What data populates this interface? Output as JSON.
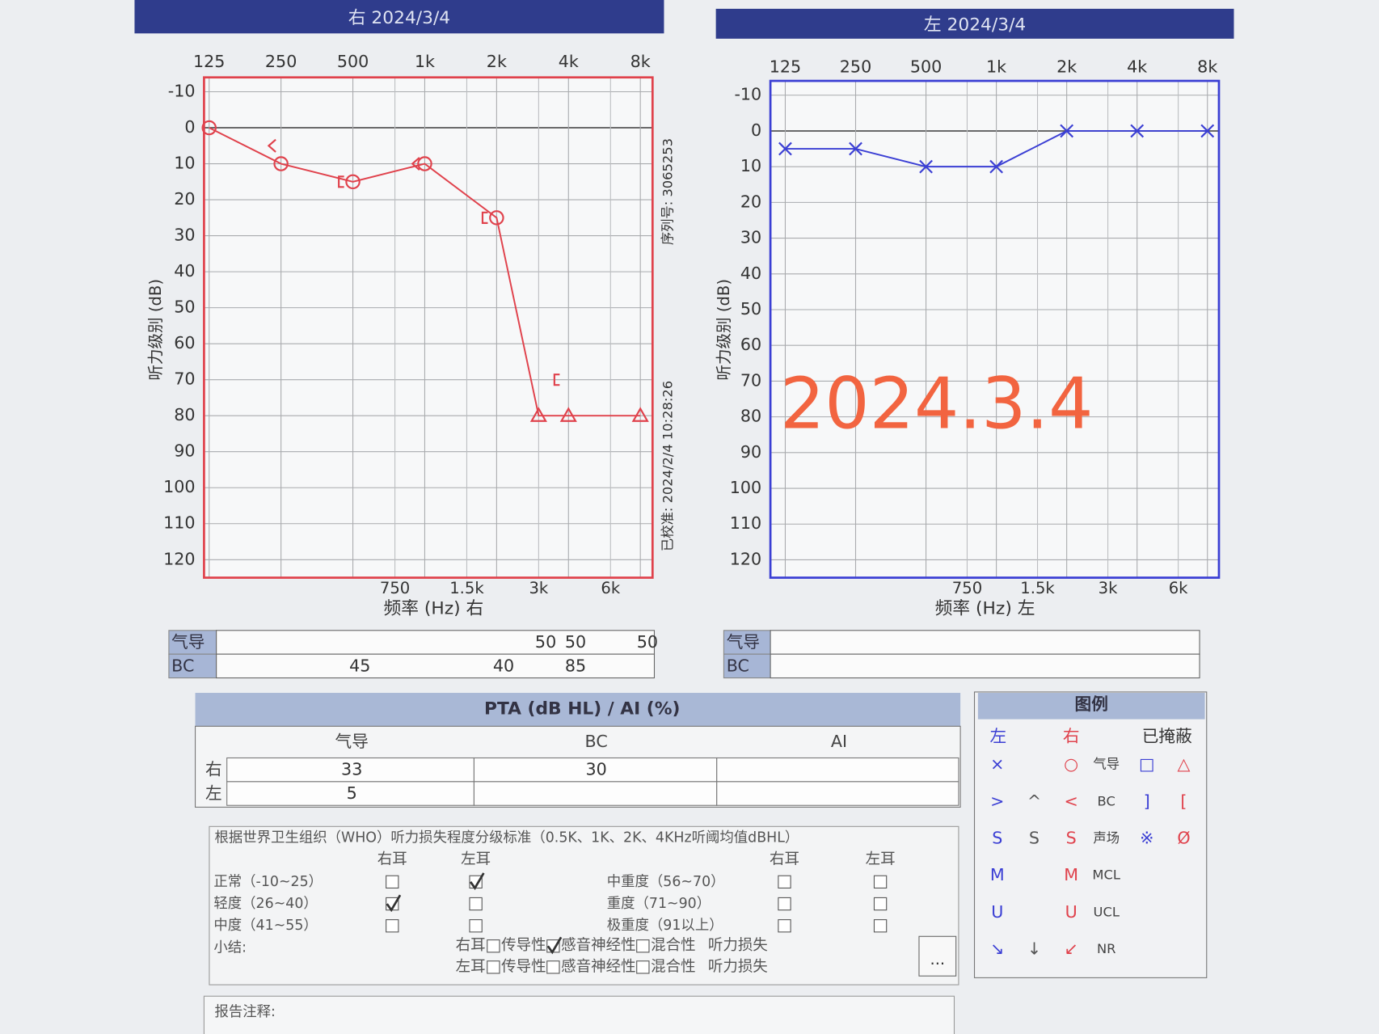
{
  "chart_data": [
    {
      "type": "line",
      "title": "右 2024/3/4",
      "x_label": "频率 (Hz) 右",
      "y_label": "听力级别 (dB)",
      "log_x": true,
      "xlim": [
        119,
        9000
      ],
      "ylim": [
        125,
        -14
      ],
      "xticks": [
        125,
        250,
        500,
        {
          "value": 1000,
          "label": "1k"
        },
        {
          "value": 2000,
          "label": "2k"
        },
        {
          "value": 4000,
          "label": "4k"
        },
        {
          "value": 8000,
          "label": "8k"
        }
      ],
      "xticks_bottom": [
        750,
        {
          "value": 1500,
          "label": "1.5k"
        },
        {
          "value": 3000,
          "label": "3k"
        },
        {
          "value": 6000,
          "label": "6k"
        }
      ],
      "yticks": [
        -10,
        0,
        10,
        20,
        30,
        40,
        50,
        60,
        70,
        80,
        90,
        100,
        110,
        120
      ],
      "grid": true,
      "frame_color": "#e0424c",
      "x": [
        125,
        250,
        500,
        1000,
        2000,
        3000,
        4000,
        8000
      ],
      "series": [
        {
          "color": "#e0424c",
          "line": true,
          "markers": [
            "circle",
            "circle",
            "circle",
            "circle",
            "circle",
            "triangle",
            "triangle",
            "triangle"
          ],
          "values": [
            0,
            10,
            15,
            10,
            25,
            80,
            80,
            80
          ]
        },
        {
          "color": "#e0424c",
          "line": false,
          "markers": [
            null,
            "<",
            "[",
            "<",
            "[",
            null,
            "[",
            null
          ],
          "values": [
            null,
            5,
            15,
            10,
            25,
            null,
            70,
            null
          ]
        }
      ],
      "side_texts": [
        "序列号: 3065253",
        "已校准: 2024/2/4 10:28:26"
      ],
      "masking": {
        "air_label": "气导",
        "bc_label": "BC",
        "air": [
          null,
          null,
          null,
          null,
          null,
          50,
          50,
          50
        ],
        "bc": [
          null,
          null,
          45,
          null,
          40,
          null,
          85,
          null
        ]
      }
    },
    {
      "type": "line",
      "title": "左 2024/3/4",
      "x_label": "频率 (Hz) 左",
      "y_label": "听力级别 (dB)",
      "log_x": true,
      "xlim": [
        108,
        8960
      ],
      "ylim": [
        125,
        -14
      ],
      "xticks": [
        125,
        250,
        500,
        {
          "value": 1000,
          "label": "1k"
        },
        {
          "value": 2000,
          "label": "2k"
        },
        {
          "value": 4000,
          "label": "4k"
        },
        {
          "value": 8000,
          "label": "8k"
        }
      ],
      "xticks_bottom": [
        750,
        {
          "value": 1500,
          "label": "1.5k"
        },
        {
          "value": 3000,
          "label": "3k"
        },
        {
          "value": 6000,
          "label": "6k"
        }
      ],
      "yticks": [
        -10,
        0,
        10,
        20,
        30,
        40,
        50,
        60,
        70,
        80,
        90,
        100,
        110,
        120
      ],
      "grid": true,
      "frame_color": "#3b3fd4",
      "x": [
        125,
        250,
        500,
        1000,
        2000,
        4000,
        8000
      ],
      "series": [
        {
          "color": "#3b3fd4",
          "line": true,
          "marker": "x",
          "values": [
            5,
            5,
            10,
            10,
            0,
            0,
            0
          ]
        }
      ],
      "watermark": "2024.3.4",
      "watermark_color": "#f26440",
      "masking": {
        "air_label": "气导",
        "bc_label": "BC"
      }
    }
  ],
  "pta": {
    "title": "PTA (dB HL) / AI (%)",
    "columns": [
      "气导",
      "BC",
      "AI"
    ],
    "rows": [
      {
        "ear": "右",
        "values": [
          33,
          30,
          null
        ]
      },
      {
        "ear": "左",
        "values": [
          5,
          null,
          null
        ]
      }
    ]
  },
  "legend": {
    "title": "图例",
    "columns": [
      "左",
      "右",
      "已掩蔽"
    ],
    "rows": [
      [
        "×",
        null,
        "○",
        "气导",
        "□",
        "△"
      ],
      [
        ">",
        "^",
        "<",
        "BC",
        "]",
        "["
      ],
      [
        "S",
        "S",
        "S",
        "声场",
        "※",
        "Ø"
      ],
      [
        "M",
        null,
        "M",
        "MCL",
        null,
        null
      ],
      [
        "U",
        null,
        "U",
        "UCL",
        null,
        null
      ],
      [
        "↘",
        "↓",
        "↙",
        "NR",
        null,
        null
      ]
    ]
  },
  "who": {
    "title": "根据世界卫生组织（WHO）听力损失程度分级标准（0.5K、1K、2K、4KHz听阈均值dBHL）",
    "ear_columns": [
      "右耳",
      "左耳"
    ],
    "grades": [
      {
        "label": "正常（-10~25）",
        "right": false,
        "left": true
      },
      {
        "label": "轻度（26~40）",
        "right": true,
        "left": false
      },
      {
        "label": "中度（41~55）",
        "right": false,
        "left": false
      },
      {
        "label": "中重度（56~70）",
        "right": false,
        "left": false
      },
      {
        "label": "重度（71~90）",
        "right": false,
        "left": false
      },
      {
        "label": "极重度（91以上）",
        "right": false,
        "left": false
      }
    ],
    "summary_label": "小结:",
    "summary": [
      {
        "ear": "右耳",
        "options": [
          {
            "label": "传导性",
            "checked": false
          },
          {
            "label": "感音神经性",
            "checked": true
          },
          {
            "label": "混合性",
            "checked": false
          }
        ],
        "suffix": "听力损失"
      },
      {
        "ear": "左耳",
        "options": [
          {
            "label": "传导性",
            "checked": false
          },
          {
            "label": "感音神经性",
            "checked": false
          },
          {
            "label": "混合性",
            "checked": false
          }
        ],
        "suffix": "听力损失"
      }
    ],
    "button": "..."
  },
  "notes_label": "报告注释:"
}
